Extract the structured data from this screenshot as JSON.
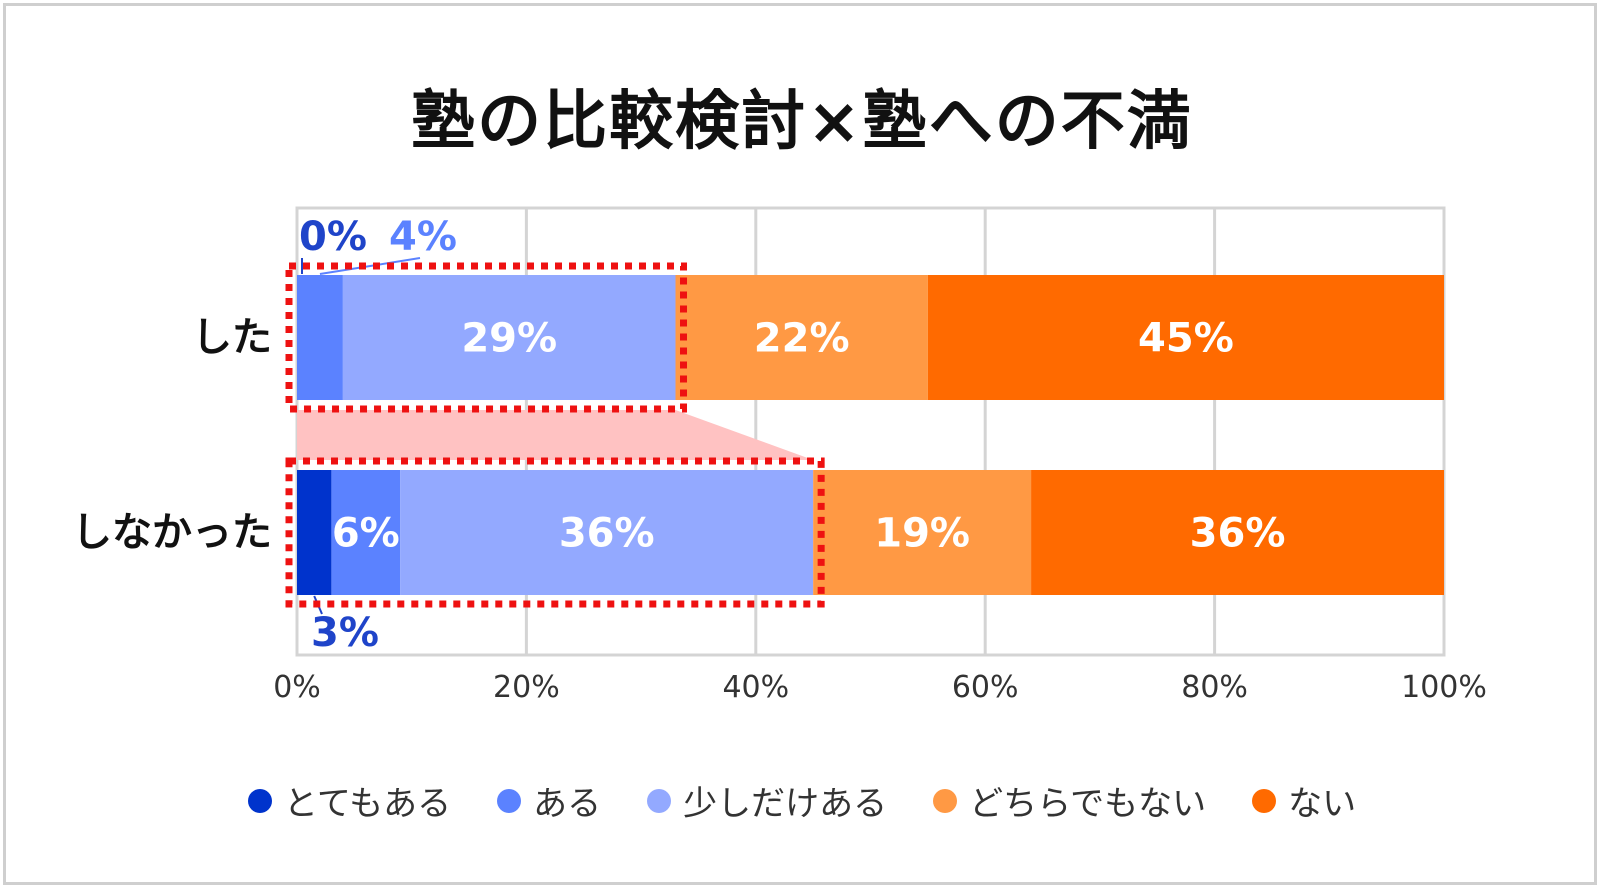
{
  "title": "塾の比較検討×塾への不満",
  "chart_data": {
    "type": "bar",
    "orientation": "horizontal",
    "stacked": true,
    "title": "塾の比較検討×塾への不満",
    "categories": [
      "した",
      "しなかった"
    ],
    "series": [
      {
        "name": "とてもある",
        "values": [
          0,
          3
        ],
        "labels": [
          "0%",
          "3%"
        ],
        "color": "#0033cc"
      },
      {
        "name": "ある",
        "values": [
          4,
          6
        ],
        "labels": [
          "4%",
          "6%"
        ],
        "color": "#5b82ff"
      },
      {
        "name": "少しだけある",
        "values": [
          29,
          36
        ],
        "labels": [
          "29%",
          "36%"
        ],
        "color": "#93a9ff"
      },
      {
        "name": "どちらでもない",
        "values": [
          22,
          19
        ],
        "labels": [
          "22%",
          "19%"
        ],
        "color": "#ff9944"
      },
      {
        "name": "ない",
        "values": [
          45,
          36
        ],
        "labels": [
          "45%",
          "36%"
        ],
        "color": "#ff6a00"
      }
    ],
    "xlim": [
      0,
      100
    ],
    "xticks": [
      "0%",
      "20%",
      "40%",
      "60%",
      "80%",
      "100%"
    ],
    "grid": true,
    "legend": "bottom",
    "highlight": "dotted red box around the combined dissatisfied segments (とてもある + ある + 少しだけある) of each bar"
  }
}
